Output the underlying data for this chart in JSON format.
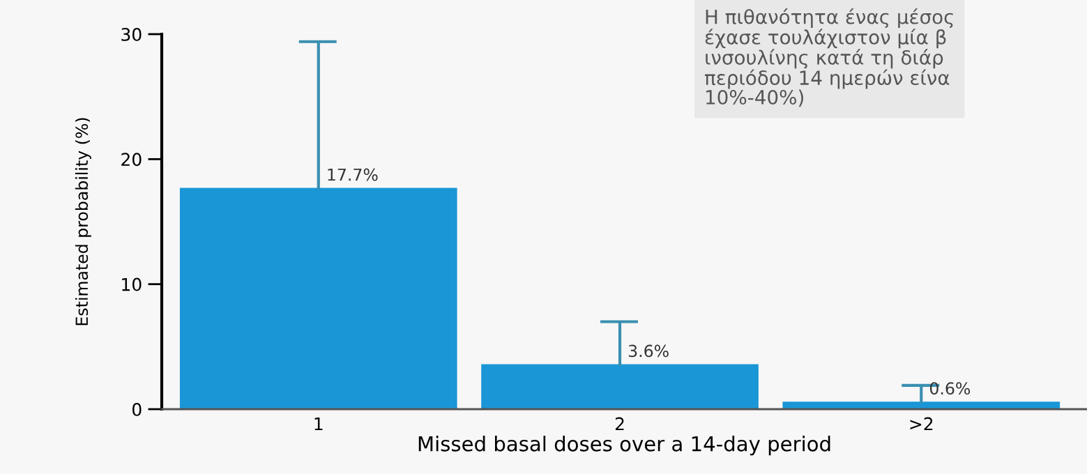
{
  "chart_data": {
    "type": "bar",
    "xlabel": "Missed basal doses over a 14-day period",
    "ylabel": "Estimated probability (%)",
    "categories": [
      "1",
      "2",
      ">2"
    ],
    "values": [
      17.7,
      3.6,
      0.6
    ],
    "errors": [
      [
        17.7,
        29.4
      ],
      [
        3.6,
        7.0
      ],
      [
        0.6,
        1.9
      ]
    ],
    "value_labels": [
      "17.7%",
      "3.6%",
      "0.6%"
    ],
    "color": "#1a96d6",
    "ylim": [
      0,
      30
    ],
    "yticks": [
      0,
      10,
      20,
      30
    ],
    "grid": false,
    "annotations": [
      "Η πιθανότητα ένας μέσος\nέχασε τουλάχιστον μία β\nινσουλίνης κατά τη διάρ\nπεριόδου 14 ημερών είνα\n10%-40%)"
    ]
  }
}
